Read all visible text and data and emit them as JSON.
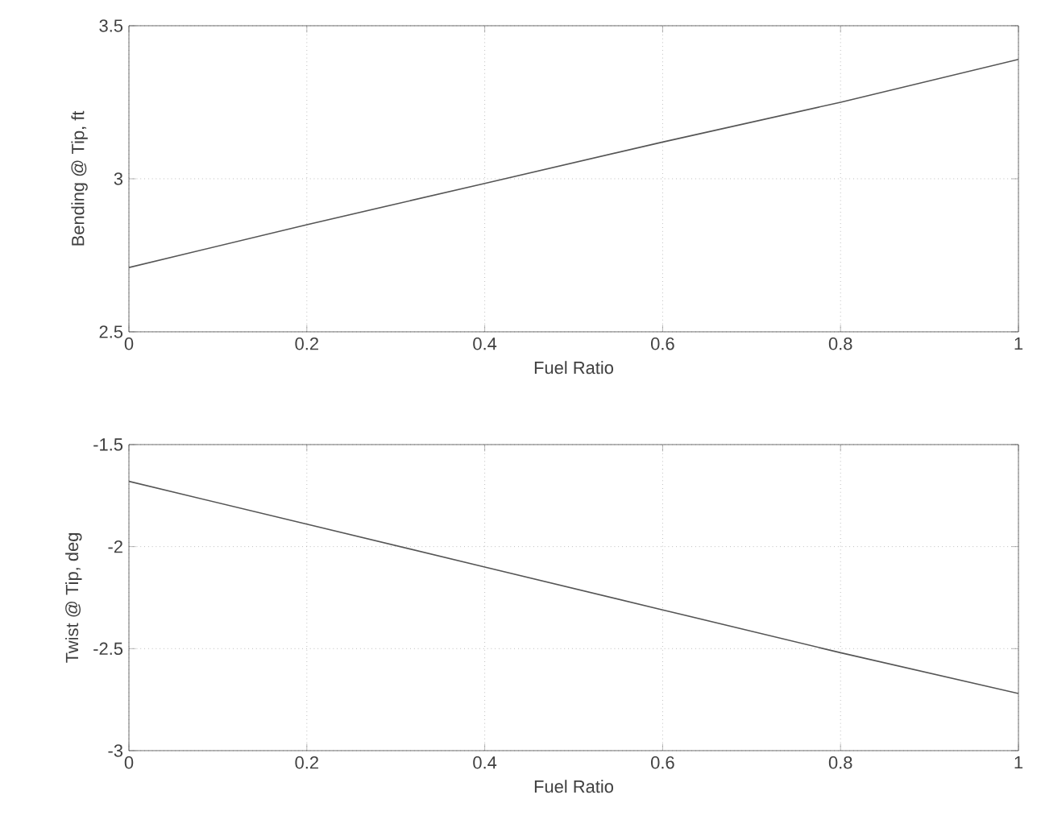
{
  "chart_data": [
    {
      "type": "line",
      "xlabel": "Fuel Ratio",
      "ylabel": "Bending @ Tip, ft",
      "x": [
        0,
        0.2,
        0.4,
        0.6,
        0.8,
        1
      ],
      "series": [
        {
          "color": "#555555",
          "values": [
            2.71,
            2.85,
            2.985,
            3.12,
            3.25,
            3.39
          ]
        }
      ],
      "xlim": [
        0,
        1
      ],
      "ylim": [
        2.5,
        3.5
      ],
      "xticks": [
        0,
        0.2,
        0.4,
        0.6,
        0.8,
        1
      ],
      "yticks": [
        2.5,
        3,
        3.5
      ],
      "grid": true
    },
    {
      "type": "line",
      "xlabel": "Fuel Ratio",
      "ylabel": "Twist @ Tip, deg",
      "x": [
        0,
        0.2,
        0.4,
        0.6,
        0.8,
        1
      ],
      "series": [
        {
          "color": "#555555",
          "values": [
            -1.68,
            -1.89,
            -2.1,
            -2.31,
            -2.52,
            -2.72
          ]
        }
      ],
      "xlim": [
        0,
        1
      ],
      "ylim": [
        -3,
        -1.5
      ],
      "xticks": [
        0,
        0.2,
        0.4,
        0.6,
        0.8,
        1
      ],
      "yticks": [
        -3,
        -2.5,
        -2,
        -1.5
      ],
      "grid": true
    }
  ]
}
